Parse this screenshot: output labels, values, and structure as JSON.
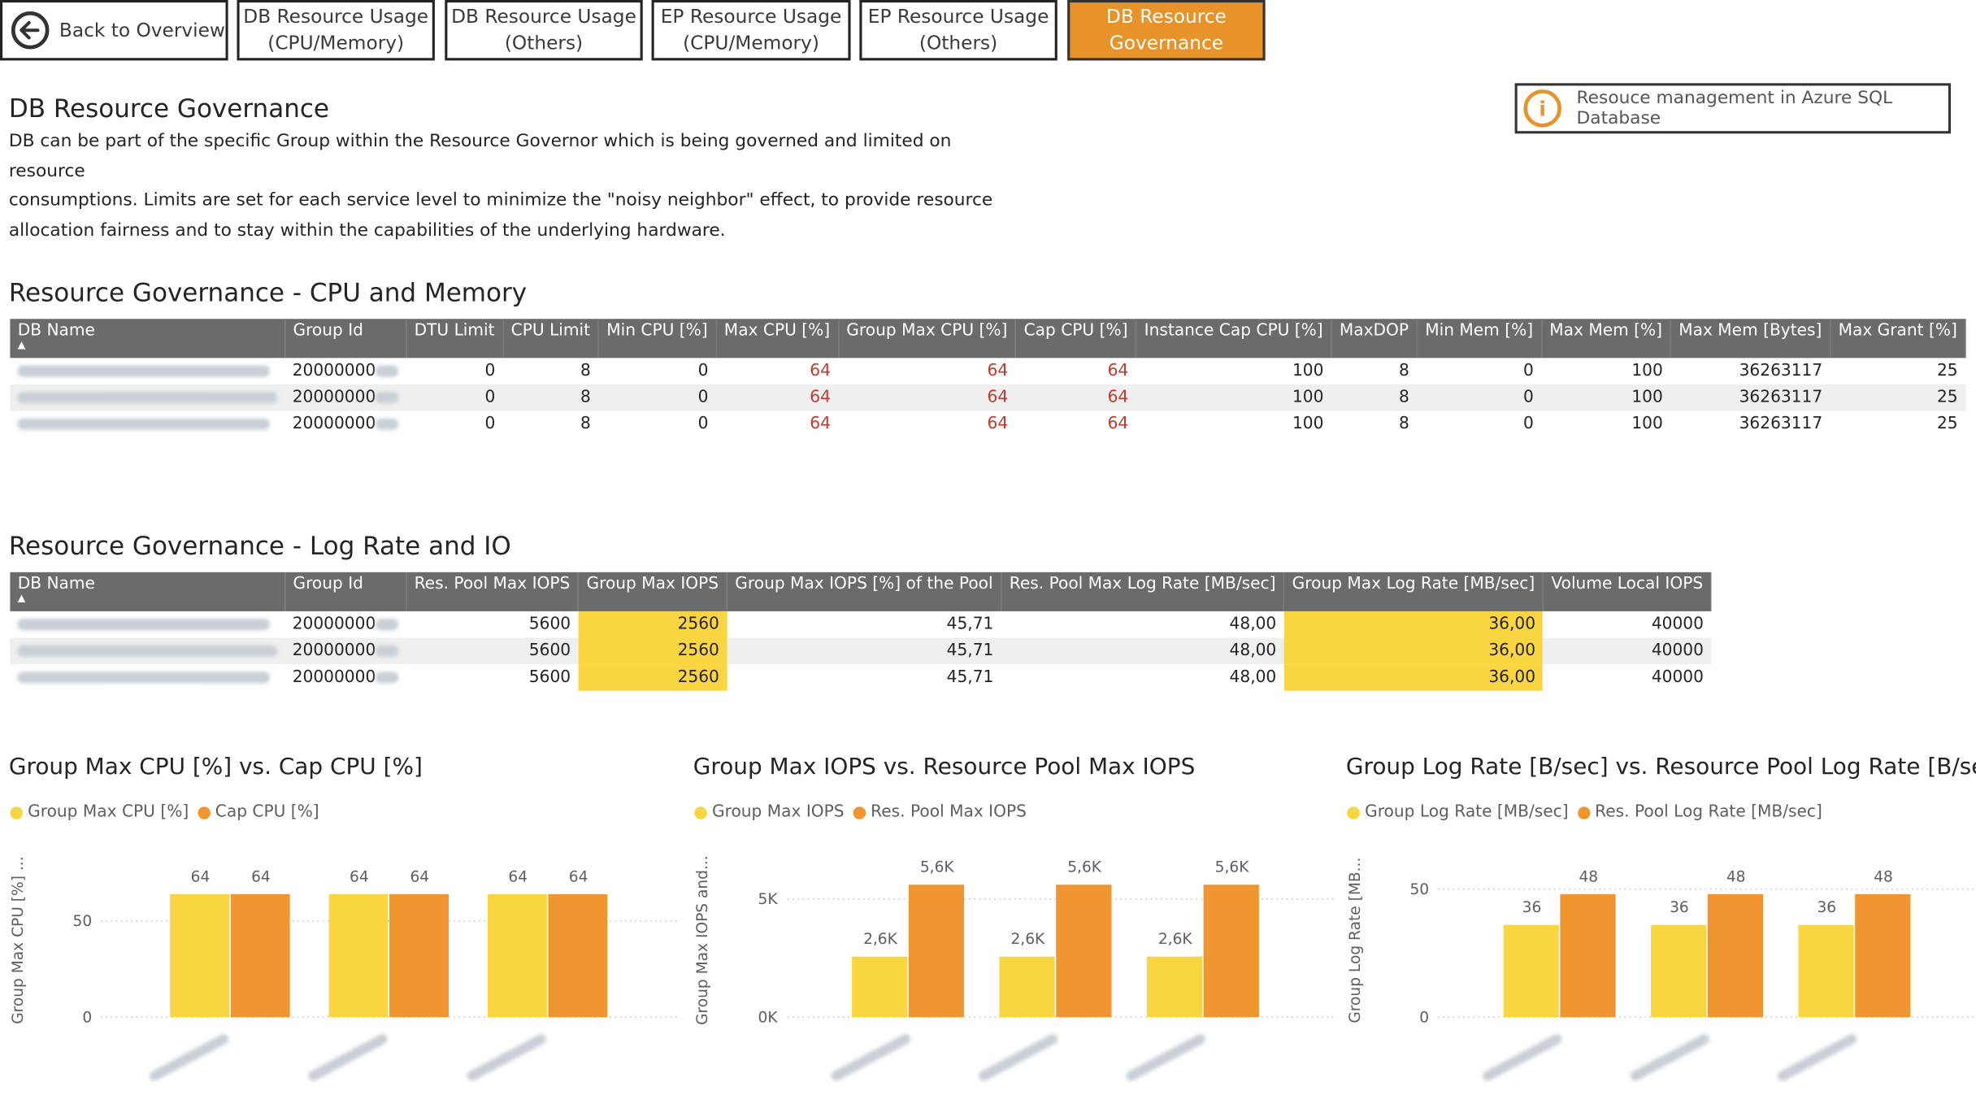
{
  "colors": {
    "yellow": "#f9d541",
    "orange": "#f0952f",
    "active_tab": "#e8922a",
    "header": "#6b6b6b",
    "red_value": "#c0392b"
  },
  "nav": {
    "back_label": "Back to Overview",
    "tabs": [
      {
        "line1": "DB Resource Usage",
        "line2": "(CPU/Memory)"
      },
      {
        "line1": "DB Resource Usage",
        "line2": "(Others)"
      },
      {
        "line1": "EP Resource Usage",
        "line2": "(CPU/Memory)"
      },
      {
        "line1": "EP Resource Usage",
        "line2": "(Others)"
      },
      {
        "line1": "DB Resource",
        "line2": "Governance",
        "active": true
      }
    ]
  },
  "page": {
    "title": "DB Resource Governance",
    "description_lines": [
      "DB can be part of the specific Group within the Resource Governor which is being governed and limited on resource",
      "consumptions. Limits are set for each service level to minimize the \"noisy neighbor\" effect, to provide resource",
      "allocation fairness and to stay within the capabilities of the underlying hardware."
    ],
    "info_link": "Resouce management in Azure SQL Database"
  },
  "cpu_table": {
    "title": "Resource Governance - CPU and Memory",
    "headers": [
      "DB Name",
      "Group Id",
      "DTU Limit",
      "CPU Limit",
      "Min CPU [%]",
      "Max CPU [%]",
      "Group Max CPU [%]",
      "Cap CPU [%]",
      "Instance Cap CPU [%]",
      "MaxDOP",
      "Min Mem [%]",
      "Max Mem [%]",
      "Max Mem [Bytes]",
      "Max Grant [%]"
    ],
    "rows": [
      [
        "",
        "20000000",
        "0",
        "8",
        "0",
        "64",
        "64",
        "64",
        "100",
        "8",
        "0",
        "100",
        "36263117",
        "25"
      ],
      [
        "",
        "20000000",
        "0",
        "8",
        "0",
        "64",
        "64",
        "64",
        "100",
        "8",
        "0",
        "100",
        "36263117",
        "25"
      ],
      [
        "",
        "20000000",
        "0",
        "8",
        "0",
        "64",
        "64",
        "64",
        "100",
        "8",
        "0",
        "100",
        "36263117",
        "25"
      ]
    ]
  },
  "io_table": {
    "title": "Resource Governance - Log Rate and IO",
    "headers": [
      "DB Name",
      "Group Id",
      "Res. Pool Max IOPS",
      "Group Max IOPS",
      "Group Max IOPS [%] of the Pool",
      "Res. Pool Max Log Rate [MB/sec]",
      "Group Max Log Rate [MB/sec]",
      "Volume Local IOPS"
    ],
    "rows": [
      [
        "",
        "20000000",
        "5600",
        "2560",
        "45,71",
        "48,00",
        "36,00",
        "40000"
      ],
      [
        "",
        "20000000",
        "5600",
        "2560",
        "45,71",
        "48,00",
        "36,00",
        "40000"
      ],
      [
        "",
        "20000000",
        "5600",
        "2560",
        "45,71",
        "48,00",
        "36,00",
        "40000"
      ]
    ]
  },
  "chart_data": [
    {
      "type": "bar",
      "title": "Group Max CPU [%] vs. Cap CPU [%]",
      "ylabel": "Group Max CPU [%] ...",
      "categories": [
        "",
        "",
        ""
      ],
      "series": [
        {
          "name": "Group Max CPU [%]",
          "values": [
            64,
            64,
            64
          ],
          "labels": [
            "64",
            "64",
            "64"
          ]
        },
        {
          "name": "Cap CPU [%]",
          "values": [
            64,
            64,
            64
          ],
          "labels": [
            "64",
            "64",
            "64"
          ]
        }
      ],
      "yticks": [
        {
          "v": 0,
          "label": "0"
        },
        {
          "v": 50,
          "label": "50"
        }
      ],
      "ylim": [
        0,
        80
      ]
    },
    {
      "type": "bar",
      "title": "Group Max IOPS vs. Resource Pool Max IOPS",
      "ylabel": "Group Max IOPS and...",
      "categories": [
        "",
        "",
        ""
      ],
      "series": [
        {
          "name": "Group Max IOPS",
          "values": [
            2560,
            2560,
            2560
          ],
          "labels": [
            "2,6K",
            "2,6K",
            "2,6K"
          ]
        },
        {
          "name": "Res. Pool Max IOPS",
          "values": [
            5600,
            5600,
            5600
          ],
          "labels": [
            "5,6K",
            "5,6K",
            "5,6K"
          ]
        }
      ],
      "yticks": [
        {
          "v": 0,
          "label": "0K"
        },
        {
          "v": 5000,
          "label": "5K"
        }
      ],
      "ylim": [
        0,
        6500
      ]
    },
    {
      "type": "bar",
      "title": "Group Log Rate [B/sec] vs. Resource Pool Log Rate [B/sec]",
      "ylabel": "Group Log Rate [MB...",
      "categories": [
        "",
        "",
        ""
      ],
      "series": [
        {
          "name": "Group Log Rate [MB/sec]",
          "values": [
            36,
            36,
            36
          ],
          "labels": [
            "36",
            "36",
            "36"
          ]
        },
        {
          "name": "Res. Pool Log Rate [MB/sec]",
          "values": [
            48,
            48,
            48
          ],
          "labels": [
            "48",
            "48",
            "48"
          ]
        }
      ],
      "yticks": [
        {
          "v": 0,
          "label": "0"
        },
        {
          "v": 50,
          "label": "50"
        }
      ],
      "ylim": [
        0,
        60
      ]
    }
  ]
}
